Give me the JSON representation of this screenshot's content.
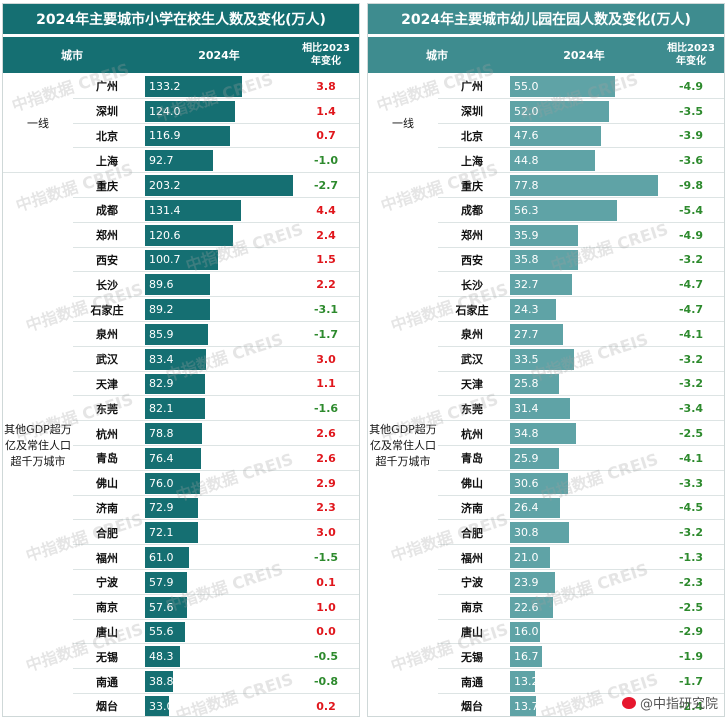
{
  "chart_data": [
    {
      "type": "table",
      "title": "2024年主要城市小学在校生人数及变化(万人)",
      "columns": [
        "城市",
        "2024年",
        "相比2023年变化"
      ],
      "groups": [
        {
          "label": "一线",
          "count": 4
        },
        {
          "label": "其他GDP超万亿及常住人口超千万城市",
          "count": 22
        }
      ],
      "categories": [
        "广州",
        "深圳",
        "北京",
        "上海",
        "重庆",
        "成都",
        "郑州",
        "西安",
        "长沙",
        "石家庄",
        "泉州",
        "武汉",
        "天津",
        "东莞",
        "杭州",
        "青岛",
        "佛山",
        "济南",
        "合肥",
        "福州",
        "宁波",
        "南京",
        "唐山",
        "无锡",
        "南通",
        "烟台"
      ],
      "values": [
        133.2,
        124.0,
        116.9,
        92.7,
        203.2,
        131.4,
        120.6,
        100.7,
        89.6,
        89.2,
        85.9,
        83.4,
        82.9,
        82.1,
        78.8,
        76.4,
        76.0,
        72.9,
        72.1,
        61.0,
        57.9,
        57.6,
        55.6,
        48.3,
        38.8,
        33.0
      ],
      "value_labels": [
        "133.2",
        "124.0",
        "116.9",
        "92.7",
        "203.2",
        "131.4",
        "120.6",
        "100.7",
        "89.6",
        "89.2",
        "85.9",
        "83.4",
        "82.9",
        "82.1",
        "78.8",
        "76.4",
        "76.0",
        "72.9",
        "72.1",
        "61.0",
        "57.9",
        "57.6",
        "55.6",
        "48.3",
        "38.8",
        "33.0"
      ],
      "changes": [
        "3.8",
        "1.4",
        "0.7",
        "-1.0",
        "-2.7",
        "4.4",
        "2.4",
        "1.5",
        "2.2",
        "-3.1",
        "-1.7",
        "3.0",
        "1.1",
        "-1.6",
        "2.6",
        "2.6",
        "2.9",
        "2.3",
        "3.0",
        "-1.5",
        "0.1",
        "1.0",
        "0.0",
        "-0.5",
        "-0.8",
        "0.2"
      ],
      "max": 203.2,
      "bar_color": "#156f72",
      "header_color": "#156f72",
      "pos_color": "#e0161c",
      "neg_color": "#2d8a2d"
    },
    {
      "type": "table",
      "title": "2024年主要城市幼儿园在园人数及变化(万人)",
      "columns": [
        "城市",
        "2024年",
        "相比2023年变化"
      ],
      "groups": [
        {
          "label": "一线",
          "count": 4
        },
        {
          "label": "其他GDP超万亿及常住人口超千万城市",
          "count": 22
        }
      ],
      "categories": [
        "广州",
        "深圳",
        "北京",
        "上海",
        "重庆",
        "成都",
        "郑州",
        "西安",
        "长沙",
        "石家庄",
        "泉州",
        "武汉",
        "天津",
        "东莞",
        "杭州",
        "青岛",
        "佛山",
        "济南",
        "合肥",
        "福州",
        "宁波",
        "南京",
        "唐山",
        "无锡",
        "南通",
        "烟台"
      ],
      "values": [
        55.0,
        52.0,
        47.6,
        44.8,
        77.8,
        56.3,
        35.9,
        35.8,
        32.7,
        24.3,
        27.7,
        33.5,
        25.8,
        31.4,
        34.8,
        25.9,
        30.6,
        26.4,
        30.8,
        21.0,
        23.9,
        22.6,
        16.0,
        16.7,
        13.2,
        13.7
      ],
      "value_labels": [
        "55.0",
        "52.0",
        "47.6",
        "44.8",
        "77.8",
        "56.3",
        "35.9",
        "35.8",
        "32.7",
        "24.3",
        "27.7",
        "33.5",
        "25.8",
        "31.4",
        "34.8",
        "25.9",
        "30.6",
        "26.4",
        "30.8",
        "21.0",
        "23.9",
        "22.6",
        "16.0",
        "16.7",
        "13.2",
        "13.7"
      ],
      "changes": [
        "-4.9",
        "-3.5",
        "-3.9",
        "-3.6",
        "-9.8",
        "-5.4",
        "-4.9",
        "-3.2",
        "-4.7",
        "-4.7",
        "-4.1",
        "-3.2",
        "-3.2",
        "-3.4",
        "-2.5",
        "-4.1",
        "-3.3",
        "-4.5",
        "-3.2",
        "-1.3",
        "-2.3",
        "-2.5",
        "-2.9",
        "-1.9",
        "-1.7",
        "-2.4"
      ],
      "max": 77.8,
      "bar_color": "#5fa3a6",
      "header_color": "#3e8c8f",
      "pos_color": "#e0161c",
      "neg_color": "#2d8a2d"
    }
  ],
  "watermark": "中指数据 CREIS",
  "source_badge": "@中指研究院"
}
